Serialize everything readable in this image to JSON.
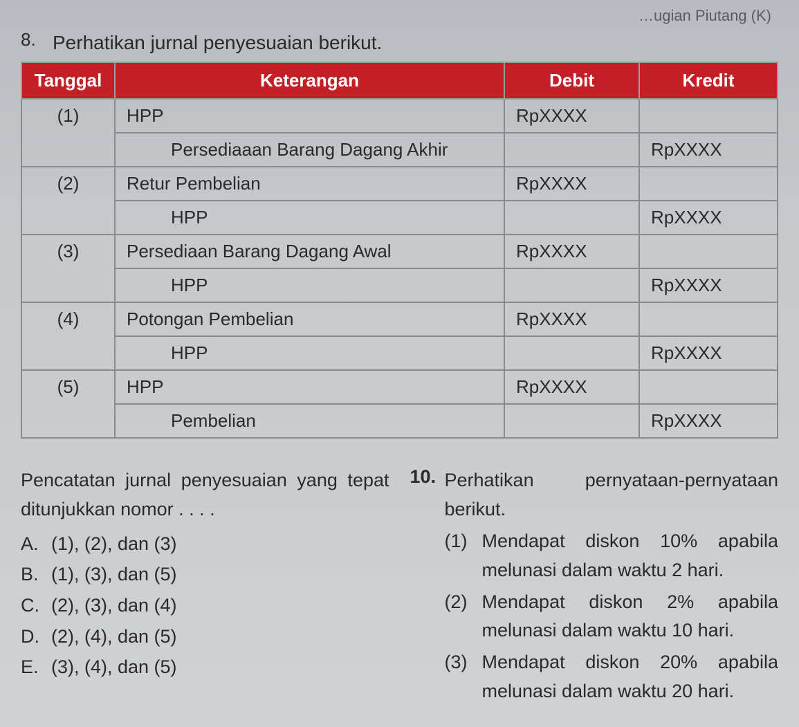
{
  "topFragment": "…ugian Piutang (K)",
  "q8": {
    "number": "8.",
    "text": "Perhatikan jurnal penyesuaian berikut.",
    "headers": [
      "Tanggal",
      "Keterangan",
      "Debit",
      "Kredit"
    ],
    "rows": [
      {
        "tanggal": "(1)",
        "ket": "HPP",
        "indent": false,
        "debit": "RpXXXX",
        "kredit": "",
        "rowspan": 2
      },
      {
        "tanggal": "",
        "ket": "Persediaaan Barang Dagang Akhir",
        "indent": true,
        "debit": "",
        "kredit": "RpXXXX",
        "rowspan": 0
      },
      {
        "tanggal": "(2)",
        "ket": "Retur Pembelian",
        "indent": false,
        "debit": "RpXXXX",
        "kredit": "",
        "rowspan": 2
      },
      {
        "tanggal": "",
        "ket": "HPP",
        "indent": true,
        "debit": "",
        "kredit": "RpXXXX",
        "rowspan": 0
      },
      {
        "tanggal": "(3)",
        "ket": "Persediaan Barang Dagang Awal",
        "indent": false,
        "debit": "RpXXXX",
        "kredit": "",
        "rowspan": 2
      },
      {
        "tanggal": "",
        "ket": "HPP",
        "indent": true,
        "debit": "",
        "kredit": "RpXXXX",
        "rowspan": 0
      },
      {
        "tanggal": "(4)",
        "ket": "Potongan Pembelian",
        "indent": false,
        "debit": "RpXXXX",
        "kredit": "",
        "rowspan": 2
      },
      {
        "tanggal": "",
        "ket": "HPP",
        "indent": true,
        "debit": "",
        "kredit": "RpXXXX",
        "rowspan": 0
      },
      {
        "tanggal": "(5)",
        "ket": "HPP",
        "indent": false,
        "debit": "RpXXXX",
        "kredit": "",
        "rowspan": 2
      },
      {
        "tanggal": "",
        "ket": "Pembelian",
        "indent": true,
        "debit": "",
        "kredit": "RpXXXX",
        "rowspan": 0
      }
    ],
    "stem": "Pencatatan jurnal penyesuaian yang tepat ditunjukkan nomor . . . .",
    "options": [
      {
        "letter": "A.",
        "text": "(1), (2), dan (3)"
      },
      {
        "letter": "B.",
        "text": "(1), (3), dan (5)"
      },
      {
        "letter": "C.",
        "text": "(2), (3), dan (4)"
      },
      {
        "letter": "D.",
        "text": "(2), (4), dan (5)"
      },
      {
        "letter": "E.",
        "text": "(3), (4), dan (5)"
      }
    ]
  },
  "q10": {
    "number": "10.",
    "intro": "Perhatikan pernyataan-pernyataan berikut.",
    "items": [
      {
        "n": "(1)",
        "text": "Mendapat diskon 10% apabila melunasi dalam waktu 2 hari."
      },
      {
        "n": "(2)",
        "text": "Mendapat diskon 2% apabila melunasi dalam waktu 10 hari."
      },
      {
        "n": "(3)",
        "text": "Mendapat diskon 20% apabila melunasi dalam waktu 20 hari."
      }
    ]
  },
  "style": {
    "header_bg": "#c41e26",
    "header_fg": "#ffffff",
    "border_color": "#888a8c",
    "body_bg_top": "#b8bcc0",
    "body_bg_bottom": "#d0d2d4",
    "text_color": "#2a2a2a",
    "font_size_body": 27,
    "font_size_table": 26
  }
}
